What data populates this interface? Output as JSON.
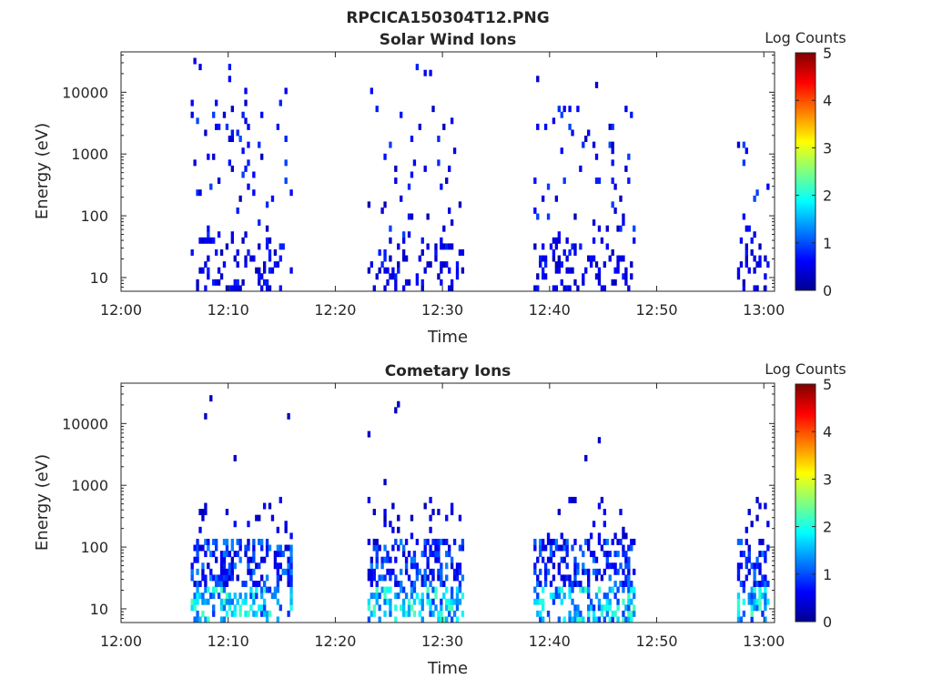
{
  "figure_title": "RPCICA150304T12.PNG",
  "chart_data": [
    {
      "type": "heatmap",
      "title": "Solar Wind Ions",
      "xlabel": "Time",
      "ylabel": "Energy (eV)",
      "x_range": [
        "12:00",
        "13:01"
      ],
      "x_ticks": [
        "12:00",
        "12:10",
        "12:20",
        "12:30",
        "12:40",
        "12:50",
        "13:00"
      ],
      "y_scale": "log",
      "y_range": [
        6,
        45000
      ],
      "y_ticks": [
        {
          "value": 10,
          "label": "10"
        },
        {
          "value": 100,
          "label": "100"
        },
        {
          "value": 1000,
          "label": "1000"
        },
        {
          "value": 10000,
          "label": "10000"
        }
      ],
      "colorbar": {
        "label": "Log Counts",
        "range": [
          0,
          5
        ],
        "ticks": [
          "0",
          "1",
          "2",
          "3",
          "4",
          "5"
        ],
        "colormap": "jet"
      },
      "time_blocks": [
        {
          "start": "12:06.5",
          "end": "12:16"
        },
        {
          "start": "12:23",
          "end": "12:32"
        },
        {
          "start": "12:38.5",
          "end": "12:48"
        },
        {
          "start": "12:57.5",
          "end": "13:00.5"
        }
      ],
      "grid": false,
      "legend": "none"
    },
    {
      "type": "heatmap",
      "title": "Cometary Ions",
      "xlabel": "Time",
      "ylabel": "Energy (eV)",
      "x_range": [
        "12:00",
        "13:01"
      ],
      "x_ticks": [
        "12:00",
        "12:10",
        "12:20",
        "12:30",
        "12:40",
        "12:50",
        "13:00"
      ],
      "y_scale": "log",
      "y_range": [
        6,
        45000
      ],
      "y_ticks": [
        {
          "value": 10,
          "label": "10"
        },
        {
          "value": 100,
          "label": "100"
        },
        {
          "value": 1000,
          "label": "1000"
        },
        {
          "value": 10000,
          "label": "10000"
        }
      ],
      "colorbar": {
        "label": "Log Counts",
        "range": [
          0,
          5
        ],
        "ticks": [
          "0",
          "1",
          "2",
          "3",
          "4",
          "5"
        ],
        "colormap": "jet"
      },
      "time_blocks": [
        {
          "start": "12:06.5",
          "end": "12:16"
        },
        {
          "start": "12:23",
          "end": "12:32"
        },
        {
          "start": "12:38.5",
          "end": "12:48"
        },
        {
          "start": "12:57.5",
          "end": "13:00.5"
        }
      ],
      "grid": false,
      "legend": "none"
    }
  ]
}
